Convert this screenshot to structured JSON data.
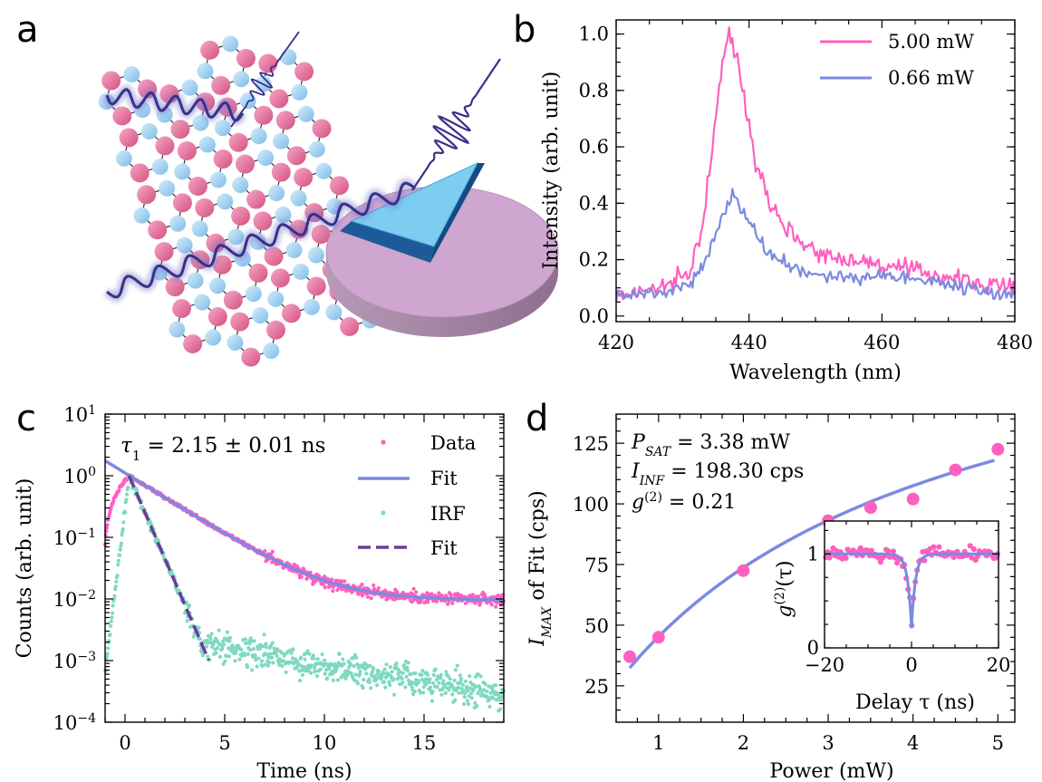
{
  "panel_labels": [
    "a",
    "b",
    "c",
    "d"
  ],
  "colors": {
    "pink": "#ff5fc0",
    "blue": "#7c8ae0",
    "teal": "#7fd9c0",
    "purple": "#6a3d9a",
    "atom_pink": "#e7739f",
    "atom_blue": "#9fcff0",
    "disk": "#cfa6cf",
    "triangle": "#7ccdf0"
  },
  "chart_data": [
    {
      "panel": "b",
      "type": "line",
      "xlabel": "Wavelength (nm)",
      "ylabel": "Intensity (arb. unit)",
      "xlim": [
        420,
        480
      ],
      "ylim": [
        -0.02,
        1.05
      ],
      "xticks": [
        420,
        440,
        460,
        480
      ],
      "yticks": [
        0.0,
        0.2,
        0.4,
        0.6,
        0.8,
        1.0
      ],
      "ytick_labels": [
        "0.0",
        "0.2",
        "0.4",
        "0.6",
        "0.8",
        "1.0"
      ],
      "legend_position": "top-right",
      "series": [
        {
          "name": "5.00 mW",
          "color": "#ff5fc0",
          "x": [
            420,
            424,
            428,
            431,
            433,
            434.5,
            436,
            437,
            438,
            439.5,
            441,
            443,
            445,
            448,
            452,
            456,
            460,
            465,
            470,
            475,
            480
          ],
          "y": [
            0.07,
            0.09,
            0.11,
            0.15,
            0.32,
            0.6,
            0.9,
            1.0,
            0.93,
            0.75,
            0.55,
            0.42,
            0.33,
            0.26,
            0.21,
            0.2,
            0.18,
            0.16,
            0.14,
            0.11,
            0.1
          ]
        },
        {
          "name": "0.66 mW",
          "color": "#7c8ae0",
          "x": [
            420,
            424,
            428,
            431,
            433,
            435,
            436.5,
            437.5,
            439,
            441,
            443,
            446,
            450,
            455,
            460,
            465,
            470,
            475,
            480
          ],
          "y": [
            0.07,
            0.08,
            0.09,
            0.11,
            0.17,
            0.3,
            0.38,
            0.43,
            0.37,
            0.29,
            0.22,
            0.18,
            0.15,
            0.13,
            0.15,
            0.13,
            0.11,
            0.09,
            0.08
          ]
        }
      ]
    },
    {
      "panel": "c",
      "type": "scatter",
      "xlabel": "Time (ns)",
      "ylabel": "Counts (arb. unit)",
      "yscale": "log",
      "xlim": [
        -1,
        19
      ],
      "ylim": [
        0.0001,
        10
      ],
      "xticks": [
        0,
        5,
        10,
        15
      ],
      "yticks": [
        0.0001,
        0.001,
        0.01,
        0.1,
        1,
        10
      ],
      "ytick_labels": [
        [
          "10",
          "−4"
        ],
        [
          "10",
          "−3"
        ],
        [
          "10",
          "−2"
        ],
        [
          "10",
          "−1"
        ],
        [
          "10",
          "0"
        ],
        [
          "10",
          "1"
        ]
      ],
      "annotation": [
        "τ",
        "1",
        " = 2.15 ± 0.01 ns"
      ],
      "legend_position": "top-right",
      "data_fit": {
        "tau": 2.15,
        "tau_err": 0.01,
        "amplitude": 1.0,
        "offset": 0.0095,
        "t0": 0.2
      },
      "irf_fit": {
        "tau": 0.58,
        "amplitude": 1.0,
        "t0": 0.2,
        "t_end": 4.2
      },
      "irf_floor": {
        "level": 0.003,
        "level_end": 0.0003
      },
      "series": [
        {
          "name": "Data",
          "color": "#ff5fc0",
          "marker": "dot"
        },
        {
          "name": "Fit",
          "color": "#7c8ae0",
          "marker": "line"
        },
        {
          "name": "IRF",
          "color": "#7fd9c0",
          "marker": "dot"
        },
        {
          "name": "Fit",
          "color": "#6a3d9a",
          "marker": "dashed"
        }
      ]
    },
    {
      "panel": "d",
      "type": "scatter",
      "xlabel": "Power (mW)",
      "ylabel": [
        "I",
        "MAX",
        " of Fit (cps)"
      ],
      "xlim": [
        0.5,
        5.2
      ],
      "ylim": [
        10,
        137
      ],
      "xticks": [
        1,
        2,
        3,
        4,
        5
      ],
      "yticks": [
        25,
        50,
        75,
        100,
        125
      ],
      "annotations": [
        [
          "P",
          "SAT",
          " = 3.38 mW"
        ],
        [
          "I",
          "INF",
          " = 198.30 cps"
        ],
        [
          "g",
          "(2)",
          " = 0.21"
        ]
      ],
      "fit": {
        "P_sat": 3.38,
        "I_inf": 198.3
      },
      "points": {
        "x": [
          0.66,
          1.0,
          2.0,
          3.0,
          3.5,
          4.0,
          4.5,
          5.0
        ],
        "y": [
          37,
          45,
          72.5,
          93,
          98.5,
          102,
          114,
          122.5
        ]
      },
      "inset": {
        "xlabel": "Delay τ (ns)",
        "ylabel": [
          "g",
          "(2)",
          "(τ)"
        ],
        "xlim": [
          -20,
          20
        ],
        "ylim": [
          0,
          1.35
        ],
        "xticks": [
          -20,
          0,
          20
        ],
        "xtick_labels": [
          "−20",
          "0",
          "20"
        ],
        "yticks": [
          0,
          1
        ],
        "g2_zero": 0.21,
        "tau_ns": 0.9
      }
    }
  ]
}
